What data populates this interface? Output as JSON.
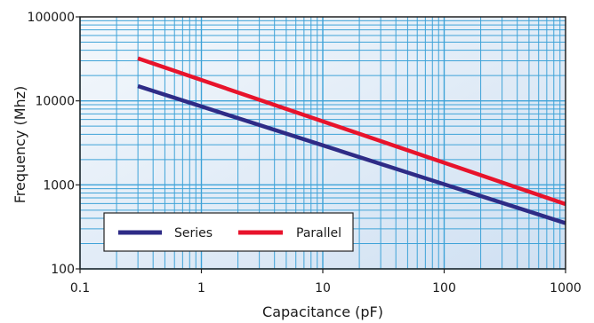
{
  "chart_data": {
    "type": "line",
    "xscale": "log",
    "yscale": "log",
    "xlabel": "Capacitance (pF)",
    "ylabel": "Frequency (Mhz)",
    "xlim": [
      0.1,
      1000
    ],
    "ylim": [
      100,
      100000
    ],
    "x_ticks": [
      "0.1",
      "1",
      "10",
      "100",
      "1000"
    ],
    "y_ticks": [
      "100",
      "1000",
      "10000",
      "100000"
    ],
    "grid": true,
    "legend_position": "bottom-left",
    "series": [
      {
        "name": "Series",
        "color": "#2e2b86",
        "x": [
          0.3,
          1000
        ],
        "y": [
          15000,
          350
        ]
      },
      {
        "name": "Parallel",
        "color": "#e8132b",
        "x": [
          0.3,
          1000
        ],
        "y": [
          32000,
          590
        ]
      }
    ]
  }
}
